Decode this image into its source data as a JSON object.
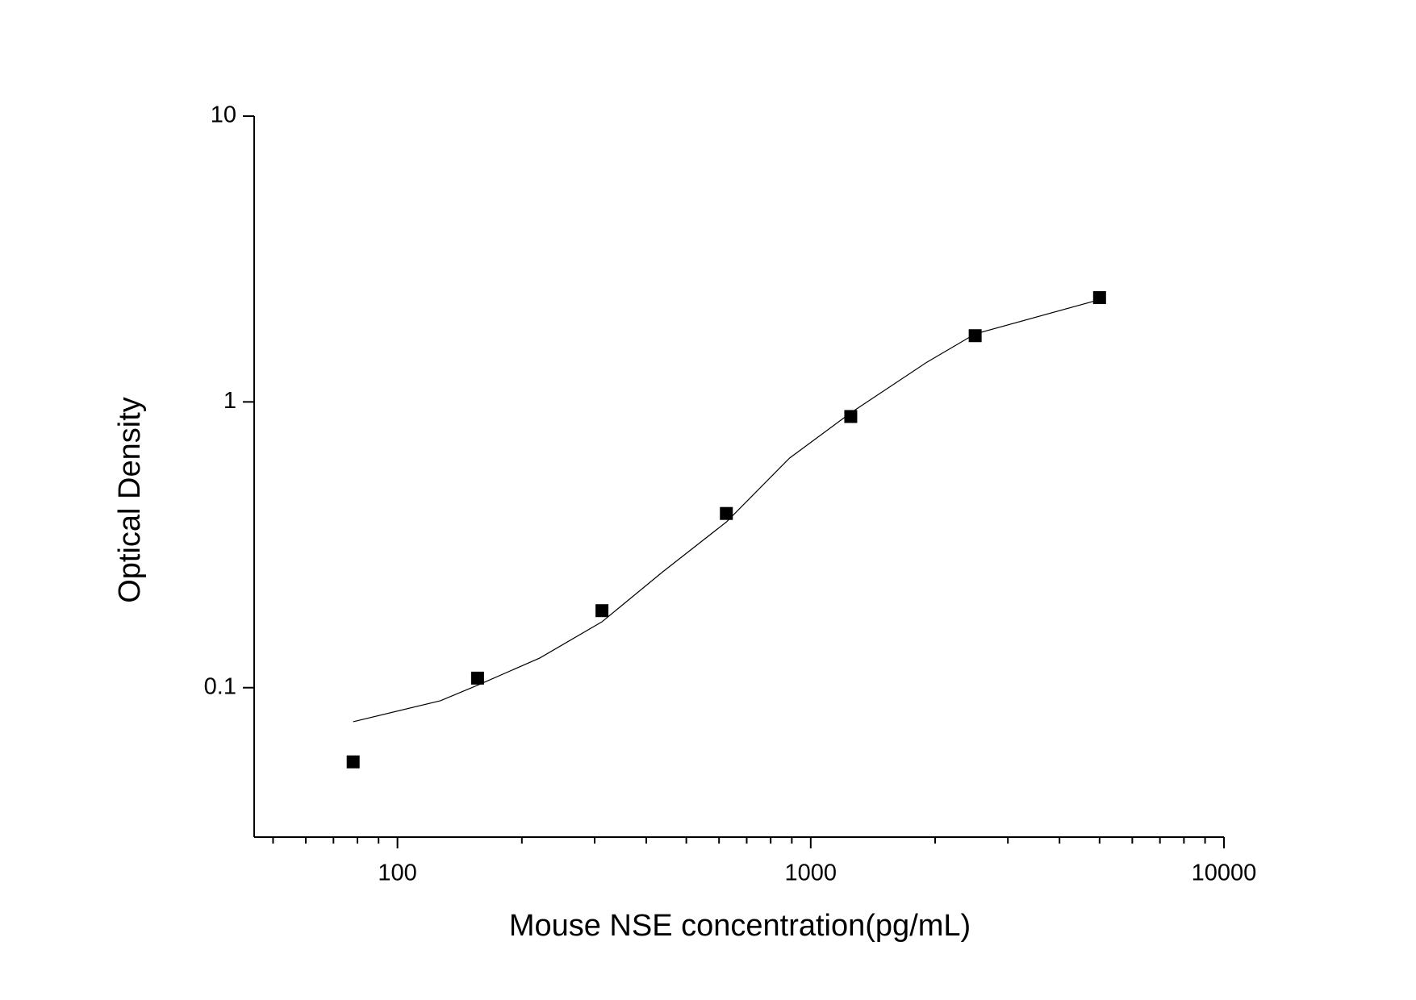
{
  "chart_data": {
    "type": "scatter",
    "x_label": "Mouse NSE concentration(pg/mL)",
    "y_label": "Optical Density",
    "xscale": "log",
    "yscale": "log",
    "xlim": [
      45,
      10000
    ],
    "ylim": [
      0.03,
      10
    ],
    "xticks": [
      100,
      1000,
      10000
    ],
    "xminorticks": [
      50,
      60,
      70,
      80,
      90,
      200,
      300,
      400,
      500,
      600,
      700,
      800,
      900,
      2000,
      3000,
      4000,
      5000,
      6000,
      7000,
      8000,
      9000
    ],
    "yticks": [
      0.1,
      1,
      10
    ],
    "series": [
      {
        "x": [
          78.125,
          156.25,
          312.5,
          625,
          1250,
          2500,
          5000
        ],
        "values": [
          0.055,
          0.108,
          0.186,
          0.407,
          0.889,
          1.705,
          2.317
        ],
        "color": "#000000",
        "marker": "square"
      },
      {
        "x": [
          78.125,
          127,
          156.25,
          221,
          312.5,
          438,
          625,
          889,
          1250,
          1900,
          2500,
          5000
        ],
        "values": [
          0.076,
          0.09,
          0.102,
          0.127,
          0.17,
          0.254,
          0.38,
          0.636,
          0.916,
          1.37,
          1.73,
          2.28
        ],
        "color": "#000000",
        "marker": "line"
      }
    ]
  }
}
